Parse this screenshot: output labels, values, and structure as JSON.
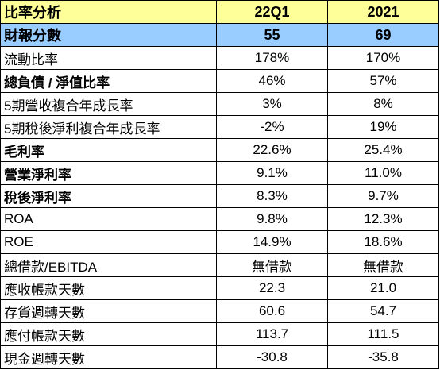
{
  "table": {
    "header": [
      "比率分析",
      "22Q1",
      "2021"
    ],
    "score_row": {
      "label": "財報分數",
      "v1": "55",
      "v2": "69"
    },
    "rows": [
      {
        "label": "流動比率",
        "v1": "178%",
        "v2": "170%",
        "bold": false
      },
      {
        "label": "總負債 / 淨值比率",
        "v1": "46%",
        "v2": "57%",
        "bold": true
      },
      {
        "label": "5期營收複合年成長率",
        "v1": "3%",
        "v2": "8%",
        "bold": false
      },
      {
        "label": "5期稅後淨利複合年成長率",
        "v1": "-2%",
        "v2": "19%",
        "bold": false
      },
      {
        "label": "毛利率",
        "v1": "22.6%",
        "v2": "25.4%",
        "bold": true
      },
      {
        "label": "營業淨利率",
        "v1": "9.1%",
        "v2": "11.0%",
        "bold": true
      },
      {
        "label": "稅後淨利率",
        "v1": "8.3%",
        "v2": "9.7%",
        "bold": true
      },
      {
        "label": "ROA",
        "v1": "9.8%",
        "v2": "12.3%",
        "bold": false
      },
      {
        "label": "ROE",
        "v1": "14.9%",
        "v2": "18.6%",
        "bold": false
      },
      {
        "label": "總借款/EBITDA",
        "v1": "無借款",
        "v2": "無借款",
        "bold": false
      },
      {
        "label": "應收帳款天數",
        "v1": "22.3",
        "v2": "21.0",
        "bold": false
      },
      {
        "label": "存貨週轉天數",
        "v1": "60.6",
        "v2": "54.7",
        "bold": false
      },
      {
        "label": "應付帳款天數",
        "v1": "113.7",
        "v2": "111.5",
        "bold": false
      },
      {
        "label": "現金週轉天數",
        "v1": "-30.8",
        "v2": "-35.8",
        "bold": false
      }
    ]
  },
  "colors": {
    "header_bg": "#ffff99",
    "score_bg": "#99ccff",
    "border": "#000000"
  }
}
